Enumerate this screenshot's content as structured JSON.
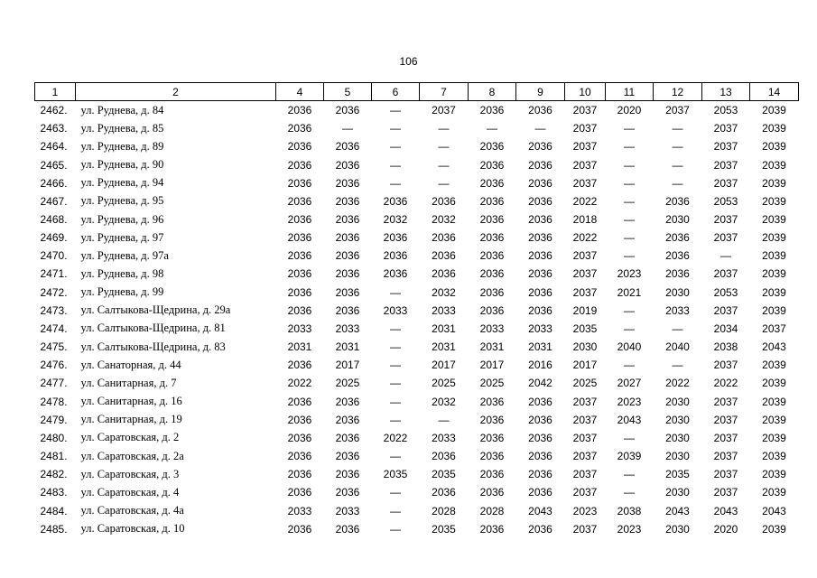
{
  "page_number": "106",
  "table": {
    "header": [
      "1",
      "2",
      "4",
      "5",
      "6",
      "7",
      "8",
      "9",
      "10",
      "11",
      "12",
      "13",
      "14"
    ],
    "rows": [
      [
        "2462.",
        "ул. Руднева, д. 84",
        "2036",
        "2036",
        "—",
        "2037",
        "2036",
        "2036",
        "2037",
        "2020",
        "2037",
        "2053",
        "2039"
      ],
      [
        "2463.",
        "ул. Руднева, д. 85",
        "2036",
        "—",
        "—",
        "—",
        "—",
        "—",
        "2037",
        "—",
        "—",
        "2037",
        "2039"
      ],
      [
        "2464.",
        "ул. Руднева, д. 89",
        "2036",
        "2036",
        "—",
        "—",
        "2036",
        "2036",
        "2037",
        "—",
        "—",
        "2037",
        "2039"
      ],
      [
        "2465.",
        "ул. Руднева, д. 90",
        "2036",
        "2036",
        "—",
        "—",
        "2036",
        "2036",
        "2037",
        "—",
        "—",
        "2037",
        "2039"
      ],
      [
        "2466.",
        "ул. Руднева, д. 94",
        "2036",
        "2036",
        "—",
        "—",
        "2036",
        "2036",
        "2037",
        "—",
        "—",
        "2037",
        "2039"
      ],
      [
        "2467.",
        "ул. Руднева, д. 95",
        "2036",
        "2036",
        "2036",
        "2036",
        "2036",
        "2036",
        "2022",
        "—",
        "2036",
        "2053",
        "2039"
      ],
      [
        "2468.",
        "ул. Руднева, д. 96",
        "2036",
        "2036",
        "2032",
        "2032",
        "2036",
        "2036",
        "2018",
        "—",
        "2030",
        "2037",
        "2039"
      ],
      [
        "2469.",
        "ул. Руднева, д. 97",
        "2036",
        "2036",
        "2036",
        "2036",
        "2036",
        "2036",
        "2022",
        "—",
        "2036",
        "2037",
        "2039"
      ],
      [
        "2470.",
        "ул. Руднева, д. 97а",
        "2036",
        "2036",
        "2036",
        "2036",
        "2036",
        "2036",
        "2037",
        "—",
        "2036",
        "—",
        "2039"
      ],
      [
        "2471.",
        "ул. Руднева, д. 98",
        "2036",
        "2036",
        "2036",
        "2036",
        "2036",
        "2036",
        "2037",
        "2023",
        "2036",
        "2037",
        "2039"
      ],
      [
        "2472.",
        "ул. Руднева, д. 99",
        "2036",
        "2036",
        "—",
        "2032",
        "2036",
        "2036",
        "2037",
        "2021",
        "2030",
        "2053",
        "2039"
      ],
      [
        "2473.",
        "ул. Салтыкова-Щедрина, д. 29а",
        "2036",
        "2036",
        "2033",
        "2033",
        "2036",
        "2036",
        "2019",
        "—",
        "2033",
        "2037",
        "2039"
      ],
      [
        "2474.",
        "ул. Салтыкова-Щедрина, д. 81",
        "2033",
        "2033",
        "—",
        "2031",
        "2033",
        "2033",
        "2035",
        "—",
        "—",
        "2034",
        "2037"
      ],
      [
        "2475.",
        "ул. Салтыкова-Щедрина, д. 83",
        "2031",
        "2031",
        "—",
        "2031",
        "2031",
        "2031",
        "2030",
        "2040",
        "2040",
        "2038",
        "2043"
      ],
      [
        "2476.",
        "ул. Санаторная, д. 44",
        "2036",
        "2017",
        "—",
        "2017",
        "2017",
        "2016",
        "2017",
        "—",
        "—",
        "2037",
        "2039"
      ],
      [
        "2477.",
        "ул. Санитарная, д. 7",
        "2022",
        "2025",
        "—",
        "2025",
        "2025",
        "2042",
        "2025",
        "2027",
        "2022",
        "2022",
        "2039"
      ],
      [
        "2478.",
        "ул. Санитарная, д. 16",
        "2036",
        "2036",
        "—",
        "2032",
        "2036",
        "2036",
        "2037",
        "2023",
        "2030",
        "2037",
        "2039"
      ],
      [
        "2479.",
        "ул. Санитарная, д. 19",
        "2036",
        "2036",
        "—",
        "—",
        "2036",
        "2036",
        "2037",
        "2043",
        "2030",
        "2037",
        "2039"
      ],
      [
        "2480.",
        "ул. Саратовская, д. 2",
        "2036",
        "2036",
        "2022",
        "2033",
        "2036",
        "2036",
        "2037",
        "—",
        "2030",
        "2037",
        "2039"
      ],
      [
        "2481.",
        "ул. Саратовская, д. 2а",
        "2036",
        "2036",
        "—",
        "2036",
        "2036",
        "2036",
        "2037",
        "2039",
        "2030",
        "2037",
        "2039"
      ],
      [
        "2482.",
        "ул. Саратовская, д. 3",
        "2036",
        "2036",
        "2035",
        "2035",
        "2036",
        "2036",
        "2037",
        "—",
        "2035",
        "2037",
        "2039"
      ],
      [
        "2483.",
        "ул. Саратовская, д. 4",
        "2036",
        "2036",
        "—",
        "2036",
        "2036",
        "2036",
        "2037",
        "—",
        "2030",
        "2037",
        "2039"
      ],
      [
        "2484.",
        "ул. Саратовская, д. 4а",
        "2033",
        "2033",
        "—",
        "2028",
        "2028",
        "2043",
        "2023",
        "2038",
        "2043",
        "2043",
        "2043"
      ],
      [
        "2485.",
        "ул. Саратовская, д. 10",
        "2036",
        "2036",
        "—",
        "2035",
        "2036",
        "2036",
        "2037",
        "2023",
        "2030",
        "2020",
        "2039"
      ]
    ]
  }
}
